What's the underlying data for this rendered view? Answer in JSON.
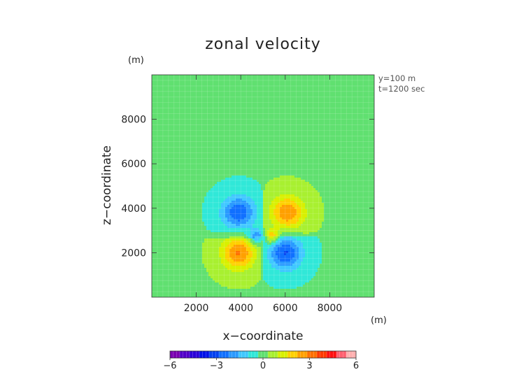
{
  "chart_data": {
    "type": "heatmap",
    "title": "zonal velocity",
    "xlabel": "x−coordinate",
    "ylabel": "z−coordinate",
    "x_unit": "(m)",
    "y_unit": "(m)",
    "annotations": [
      "y=100  m",
      "t=1200 sec"
    ],
    "xlim": [
      0,
      10000
    ],
    "ylim": [
      0,
      10000
    ],
    "x_ticks": [
      2000,
      4000,
      6000,
      8000
    ],
    "y_ticks": [
      2000,
      4000,
      6000,
      8000
    ],
    "x_tick_labels": [
      "2000",
      "4000",
      "6000",
      "8000"
    ],
    "y_tick_labels": [
      "2000",
      "4000",
      "6000",
      "8000"
    ],
    "colorbar": {
      "range": [
        -6,
        6
      ],
      "ticks": [
        -6,
        -3,
        0,
        3,
        6
      ],
      "tick_labels": [
        "−6",
        "−3",
        "0",
        "3",
        "6"
      ],
      "colors": [
        "#7a00b0",
        "#5200c8",
        "#2a00d8",
        "#0010e8",
        "#0040f0",
        "#1070ff",
        "#2a9aff",
        "#40c8ff",
        "#30e8d8",
        "#60e070",
        "#a8f030",
        "#d8f000",
        "#ffd000",
        "#ffa000",
        "#ff7000",
        "#ff3a00",
        "#ff1010",
        "#ff6070",
        "#ffb0b0"
      ]
    },
    "background_regions": [
      {
        "region": "upper-left",
        "value": -0.3
      },
      {
        "region": "upper-right",
        "value": 0.3
      },
      {
        "region": "lower-left",
        "value": 0.3
      },
      {
        "region": "lower-right",
        "value": -0.3
      }
    ],
    "features": [
      {
        "x": 3900,
        "z": 3800,
        "value": -2.5
      },
      {
        "x": 6100,
        "z": 3800,
        "value": 2.5
      },
      {
        "x": 3900,
        "z": 2000,
        "value": 2.6
      },
      {
        "x": 6000,
        "z": 2000,
        "value": -2.6
      },
      {
        "x": 4700,
        "z": 2700,
        "value": -2.0
      },
      {
        "x": 5400,
        "z": 2700,
        "value": 2.0
      }
    ]
  }
}
